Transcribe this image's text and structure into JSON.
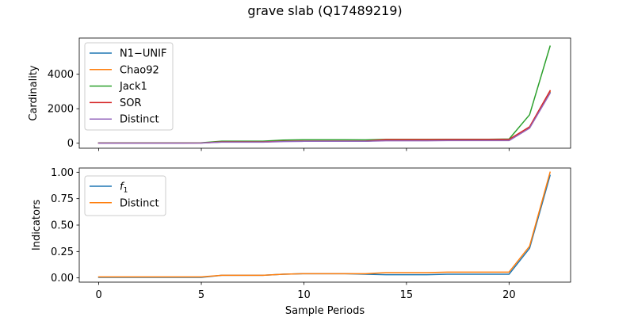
{
  "figure_title": "grave slab (Q17489219)",
  "chart_data": [
    {
      "type": "line",
      "ylabel": "Cardinality",
      "xlabel": "",
      "xlim": [
        -0.95,
        23.0
      ],
      "ylim": [
        -290,
        6100
      ],
      "xticks": [
        0,
        5,
        10,
        15,
        20
      ],
      "yticks": [
        0,
        2000,
        4000
      ],
      "show_xtick_labels": false,
      "legend_position": "top-left",
      "x": [
        0,
        1,
        2,
        3,
        4,
        5,
        6,
        7,
        8,
        9,
        10,
        11,
        12,
        13,
        14,
        15,
        16,
        17,
        18,
        19,
        20,
        21,
        22
      ],
      "series": [
        {
          "name": "N1−UNIF",
          "color": "#1f77b4",
          "values": [
            10,
            10,
            10,
            10,
            10,
            15,
            70,
            70,
            70,
            110,
            120,
            120,
            120,
            120,
            170,
            170,
            170,
            170,
            170,
            170,
            170,
            930,
            2950
          ]
        },
        {
          "name": "Chao92",
          "color": "#ff7f0e",
          "values": [
            10,
            10,
            10,
            10,
            10,
            15,
            70,
            70,
            70,
            110,
            120,
            120,
            120,
            120,
            170,
            170,
            170,
            170,
            170,
            170,
            170,
            930,
            3000
          ]
        },
        {
          "name": "Jack1",
          "color": "#2ca02c",
          "values": [
            20,
            20,
            20,
            20,
            20,
            25,
            120,
            120,
            120,
            180,
            200,
            200,
            200,
            190,
            220,
            220,
            220,
            230,
            230,
            230,
            240,
            1650,
            5630
          ]
        },
        {
          "name": "SOR",
          "color": "#d62728",
          "values": [
            10,
            10,
            10,
            10,
            10,
            15,
            75,
            75,
            75,
            115,
            125,
            125,
            125,
            125,
            210,
            210,
            210,
            215,
            215,
            215,
            220,
            950,
            3050
          ]
        },
        {
          "name": "Distinct",
          "color": "#9467bd",
          "values": [
            5,
            5,
            5,
            5,
            5,
            10,
            60,
            60,
            60,
            95,
            110,
            110,
            110,
            110,
            140,
            140,
            140,
            150,
            150,
            150,
            150,
            870,
            2900
          ]
        }
      ]
    },
    {
      "type": "line",
      "ylabel": "Indicators",
      "xlabel": "Sample Periods",
      "xlim": [
        -0.95,
        23.0
      ],
      "ylim": [
        -0.04,
        1.04
      ],
      "xticks": [
        0,
        5,
        10,
        15,
        20
      ],
      "yticks": [
        0.0,
        0.25,
        0.5,
        0.75,
        1.0
      ],
      "ytick_labels": [
        "0.00",
        "0.25",
        "0.50",
        "0.75",
        "1.00"
      ],
      "show_xtick_labels": true,
      "legend_position": "top-left",
      "x": [
        0,
        1,
        2,
        3,
        4,
        5,
        6,
        7,
        8,
        9,
        10,
        11,
        12,
        13,
        14,
        15,
        16,
        17,
        18,
        19,
        20,
        21,
        22
      ],
      "series": [
        {
          "name": "f1",
          "name_main": "f",
          "name_sub": "1",
          "color": "#1f77b4",
          "values": [
            0.005,
            0.005,
            0.005,
            0.005,
            0.005,
            0.005,
            0.025,
            0.025,
            0.025,
            0.035,
            0.04,
            0.04,
            0.04,
            0.035,
            0.03,
            0.03,
            0.03,
            0.035,
            0.035,
            0.035,
            0.035,
            0.28,
            0.97
          ]
        },
        {
          "name": "Distinct",
          "color": "#ff7f0e",
          "values": [
            0.01,
            0.01,
            0.01,
            0.01,
            0.01,
            0.01,
            0.025,
            0.025,
            0.025,
            0.035,
            0.04,
            0.04,
            0.04,
            0.04,
            0.05,
            0.05,
            0.05,
            0.055,
            0.055,
            0.055,
            0.055,
            0.3,
            1.0
          ]
        }
      ]
    }
  ]
}
